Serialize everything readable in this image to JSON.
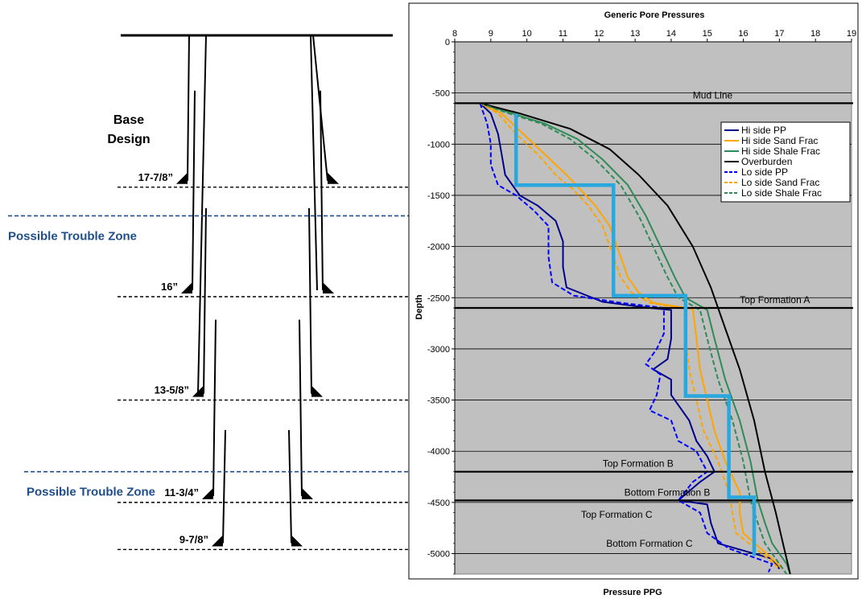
{
  "schematic": {
    "base_label_line1": "Base",
    "base_label_line2": "Design",
    "trouble_zones": [
      {
        "label": "Possible Trouble Zone",
        "depth": -1700
      },
      {
        "label": "Possible Trouble Zone",
        "depth": -4200
      }
    ],
    "casings": [
      {
        "label": "17-7/8”",
        "depth": -1420
      },
      {
        "label": "16”",
        "depth": -2490
      },
      {
        "label": "13-5/8”",
        "depth": -3500
      },
      {
        "label": "11-3/4”",
        "depth": -4500
      },
      {
        "label": "9-7/8”",
        "depth": -4960
      }
    ],
    "line_color": "#000000",
    "trouble_color": "#1f4e8c"
  },
  "chart_data": {
    "type": "line",
    "title": "Generic Pore Pressures",
    "xlabel": "Pressure PPG",
    "ylabel": "Depth",
    "xlim": [
      8,
      19
    ],
    "ylim": [
      -5200,
      0
    ],
    "xticks": [
      8,
      9,
      10,
      11,
      12,
      13,
      14,
      15,
      16,
      17,
      18,
      19
    ],
    "yticks": [
      0,
      -500,
      -1000,
      -1500,
      -2000,
      -2500,
      -3000,
      -3500,
      -4000,
      -4500,
      -5000
    ],
    "grid": "horizontal",
    "plot_background": "#c0c0c0",
    "legend_position": "top-right",
    "horizontal_lines": [
      {
        "depth": -600,
        "label": "Mud Line",
        "label_x": 14.6
      },
      {
        "depth": -2600,
        "label": "Top Formation A",
        "label_x": 15.9
      },
      {
        "depth": -4200,
        "label": "Top Formation B",
        "label_x": 12.1
      },
      {
        "depth": -4480,
        "label": "Bottom Formation B",
        "label_x": 12.7
      },
      {
        "depth": -4480,
        "label": "",
        "label_x": 0
      }
    ],
    "annotations": [
      {
        "text": "Top Formation C",
        "x": 11.5,
        "depth": -4620
      },
      {
        "text": "Bottom Formation C",
        "x": 12.2,
        "depth": -4900
      }
    ],
    "series": [
      {
        "name": "Hi side PP",
        "color": "#00008b",
        "dash": false,
        "points": [
          [
            8.7,
            -600
          ],
          [
            9.0,
            -700
          ],
          [
            9.2,
            -900
          ],
          [
            9.3,
            -1100
          ],
          [
            9.4,
            -1300
          ],
          [
            9.8,
            -1500
          ],
          [
            10.3,
            -1600
          ],
          [
            10.8,
            -1750
          ],
          [
            11.0,
            -1950
          ],
          [
            11.0,
            -2200
          ],
          [
            11.1,
            -2400
          ],
          [
            12.1,
            -2540
          ],
          [
            13.4,
            -2600
          ],
          [
            14.0,
            -2620
          ],
          [
            14.0,
            -2900
          ],
          [
            13.9,
            -3100
          ],
          [
            13.5,
            -3200
          ],
          [
            14.0,
            -3300
          ],
          [
            14.0,
            -3450
          ],
          [
            14.2,
            -3550
          ],
          [
            14.5,
            -3700
          ],
          [
            14.7,
            -3900
          ],
          [
            15.0,
            -4050
          ],
          [
            15.2,
            -4200
          ],
          [
            14.8,
            -4300
          ],
          [
            14.2,
            -4480
          ],
          [
            15.0,
            -4520
          ],
          [
            15.1,
            -4700
          ],
          [
            15.3,
            -4900
          ],
          [
            16.8,
            -5050
          ],
          [
            17.0,
            -5150
          ]
        ]
      },
      {
        "name": "Hi side Sand Frac",
        "color": "#ffa500",
        "dash": false,
        "points": [
          [
            8.7,
            -600
          ],
          [
            9.3,
            -700
          ],
          [
            9.9,
            -900
          ],
          [
            10.5,
            -1100
          ],
          [
            11.1,
            -1300
          ],
          [
            11.5,
            -1450
          ],
          [
            11.9,
            -1600
          ],
          [
            12.3,
            -1800
          ],
          [
            12.6,
            -2100
          ],
          [
            12.8,
            -2300
          ],
          [
            13.1,
            -2450
          ],
          [
            13.5,
            -2550
          ],
          [
            14.6,
            -2610
          ],
          [
            14.7,
            -2900
          ],
          [
            14.8,
            -3200
          ],
          [
            15.0,
            -3500
          ],
          [
            15.2,
            -3800
          ],
          [
            15.5,
            -4100
          ],
          [
            15.9,
            -4400
          ],
          [
            15.9,
            -4600
          ],
          [
            16.0,
            -4800
          ],
          [
            16.8,
            -5050
          ],
          [
            17.1,
            -5150
          ]
        ]
      },
      {
        "name": "Hi side Shale Frac",
        "color": "#2e8b57",
        "dash": false,
        "points": [
          [
            8.7,
            -600
          ],
          [
            9.6,
            -700
          ],
          [
            10.5,
            -800
          ],
          [
            11.4,
            -950
          ],
          [
            12.1,
            -1150
          ],
          [
            12.8,
            -1400
          ],
          [
            13.3,
            -1700
          ],
          [
            13.7,
            -2000
          ],
          [
            14.1,
            -2300
          ],
          [
            14.4,
            -2500
          ],
          [
            15.0,
            -2620
          ],
          [
            15.2,
            -2900
          ],
          [
            15.5,
            -3300
          ],
          [
            15.9,
            -3700
          ],
          [
            16.2,
            -4100
          ],
          [
            16.4,
            -4480
          ],
          [
            16.6,
            -4700
          ],
          [
            16.8,
            -4900
          ],
          [
            17.2,
            -5100
          ],
          [
            17.3,
            -5200
          ]
        ]
      },
      {
        "name": "Overburden",
        "color": "#000000",
        "dash": false,
        "points": [
          [
            8.7,
            -600
          ],
          [
            9.8,
            -700
          ],
          [
            11.2,
            -850
          ],
          [
            12.3,
            -1050
          ],
          [
            13.1,
            -1300
          ],
          [
            13.9,
            -1600
          ],
          [
            14.6,
            -2000
          ],
          [
            15.1,
            -2400
          ],
          [
            15.5,
            -2800
          ],
          [
            15.9,
            -3200
          ],
          [
            16.3,
            -3700
          ],
          [
            16.6,
            -4200
          ],
          [
            16.9,
            -4600
          ],
          [
            17.1,
            -4900
          ],
          [
            17.3,
            -5200
          ]
        ]
      },
      {
        "name": "Lo side PP",
        "color": "#0000ff",
        "dash": true,
        "points": [
          [
            8.7,
            -600
          ],
          [
            8.9,
            -800
          ],
          [
            9.0,
            -1000
          ],
          [
            9.0,
            -1200
          ],
          [
            9.2,
            -1400
          ],
          [
            9.7,
            -1500
          ],
          [
            10.2,
            -1650
          ],
          [
            10.6,
            -1800
          ],
          [
            10.6,
            -2100
          ],
          [
            10.7,
            -2350
          ],
          [
            11.3,
            -2480
          ],
          [
            12.6,
            -2550
          ],
          [
            13.8,
            -2600
          ],
          [
            13.8,
            -2850
          ],
          [
            13.6,
            -3000
          ],
          [
            13.3,
            -3150
          ],
          [
            13.7,
            -3250
          ],
          [
            13.6,
            -3450
          ],
          [
            13.4,
            -3600
          ],
          [
            14.0,
            -3700
          ],
          [
            14.2,
            -3900
          ],
          [
            14.7,
            -4000
          ],
          [
            15.0,
            -4200
          ],
          [
            14.6,
            -4300
          ],
          [
            14.2,
            -4480
          ],
          [
            14.8,
            -4600
          ],
          [
            15.0,
            -4800
          ],
          [
            15.6,
            -4950
          ],
          [
            16.8,
            -5100
          ],
          [
            16.7,
            -5180
          ]
        ]
      },
      {
        "name": "Lo side Sand Frac",
        "color": "#ffa500",
        "dash": true,
        "points": [
          [
            8.7,
            -600
          ],
          [
            9.2,
            -700
          ],
          [
            9.7,
            -900
          ],
          [
            10.3,
            -1100
          ],
          [
            10.8,
            -1300
          ],
          [
            11.3,
            -1450
          ],
          [
            11.7,
            -1600
          ],
          [
            12.1,
            -1800
          ],
          [
            12.4,
            -2100
          ],
          [
            12.6,
            -2300
          ],
          [
            12.9,
            -2450
          ],
          [
            13.4,
            -2550
          ],
          [
            14.4,
            -2610
          ],
          [
            14.4,
            -2900
          ],
          [
            14.5,
            -3200
          ],
          [
            14.7,
            -3500
          ],
          [
            14.9,
            -3800
          ],
          [
            15.3,
            -4100
          ],
          [
            15.6,
            -4400
          ],
          [
            15.7,
            -4600
          ],
          [
            15.8,
            -4800
          ],
          [
            16.7,
            -5050
          ],
          [
            17.0,
            -5150
          ]
        ]
      },
      {
        "name": "Lo side Shale Frac",
        "color": "#2e8b57",
        "dash": true,
        "points": [
          [
            8.7,
            -600
          ],
          [
            9.5,
            -700
          ],
          [
            10.4,
            -800
          ],
          [
            11.2,
            -950
          ],
          [
            11.9,
            -1150
          ],
          [
            12.6,
            -1400
          ],
          [
            13.1,
            -1700
          ],
          [
            13.5,
            -2000
          ],
          [
            13.9,
            -2300
          ],
          [
            14.2,
            -2500
          ],
          [
            14.8,
            -2620
          ],
          [
            15.0,
            -2900
          ],
          [
            15.3,
            -3300
          ],
          [
            15.7,
            -3700
          ],
          [
            16.0,
            -4100
          ],
          [
            16.2,
            -4480
          ],
          [
            16.4,
            -4700
          ],
          [
            16.6,
            -4900
          ],
          [
            17.0,
            -5100
          ],
          [
            17.2,
            -5200
          ]
        ]
      }
    ],
    "design_path": {
      "color": "#29a8e0",
      "points": [
        [
          9.7,
          -700
        ],
        [
          9.7,
          -1400
        ],
        [
          12.4,
          -1400
        ],
        [
          12.4,
          -2480
        ],
        [
          14.4,
          -2480
        ],
        [
          14.4,
          -3460
        ],
        [
          15.6,
          -3460
        ],
        [
          15.6,
          -4450
        ],
        [
          16.3,
          -4450
        ],
        [
          16.3,
          -5020
        ]
      ]
    }
  }
}
